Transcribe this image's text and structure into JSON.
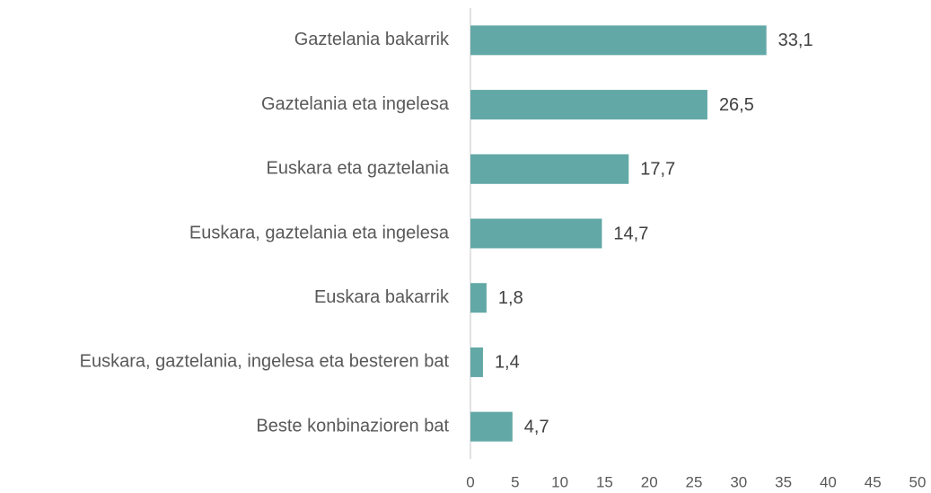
{
  "chart_data": {
    "type": "bar",
    "orientation": "horizontal",
    "categories": [
      "Gaztelania bakarrik",
      "Gaztelania eta ingelesa",
      "Euskara eta gaztelania",
      "Euskara, gaztelania eta ingelesa",
      "Euskara bakarrik",
      "Euskara, gaztelania, ingelesa eta besteren bat",
      "Beste konbinazioren bat"
    ],
    "values": [
      33.1,
      26.5,
      17.7,
      14.7,
      1.8,
      1.4,
      4.7
    ],
    "value_labels": [
      "33,1",
      "26,5",
      "17,7",
      "14,7",
      "1,8",
      "1,4",
      "4,7"
    ],
    "color": "#62a8a6",
    "xlim": [
      0,
      50
    ],
    "xticks": [
      0,
      5,
      10,
      15,
      20,
      25,
      30,
      35,
      40,
      45,
      50
    ],
    "grid": false
  }
}
